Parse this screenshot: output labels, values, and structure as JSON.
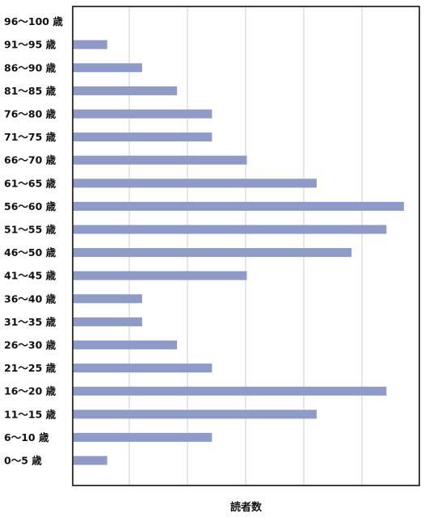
{
  "chart_data": {
    "type": "bar",
    "orientation": "horizontal",
    "categories": [
      "0～5 歳",
      "6～10 歳",
      "11～15 歳",
      "16～20 歳",
      "21～25 歳",
      "26～30 歳",
      "31～35 歳",
      "36～40 歳",
      "41～45 歳",
      "46～50 歳",
      "51～55 歳",
      "56～60 歳",
      "61～65 歳",
      "66～70 歳",
      "71～75 歳",
      "76～80 歳",
      "81～85 歳",
      "86～90 歳",
      "91～95 歳",
      "96～100 歳"
    ],
    "values": [
      1,
      4,
      7,
      9,
      4,
      3,
      2,
      2,
      5,
      8,
      9,
      9.5,
      7,
      5,
      4,
      4,
      3,
      2,
      1,
      0
    ],
    "xlim": [
      0,
      10
    ],
    "xlabel": "読者数",
    "ylabel": "",
    "title": "",
    "grid": true,
    "bar_color": "#8e9bc8",
    "grid_color": "#cfcfcf"
  }
}
